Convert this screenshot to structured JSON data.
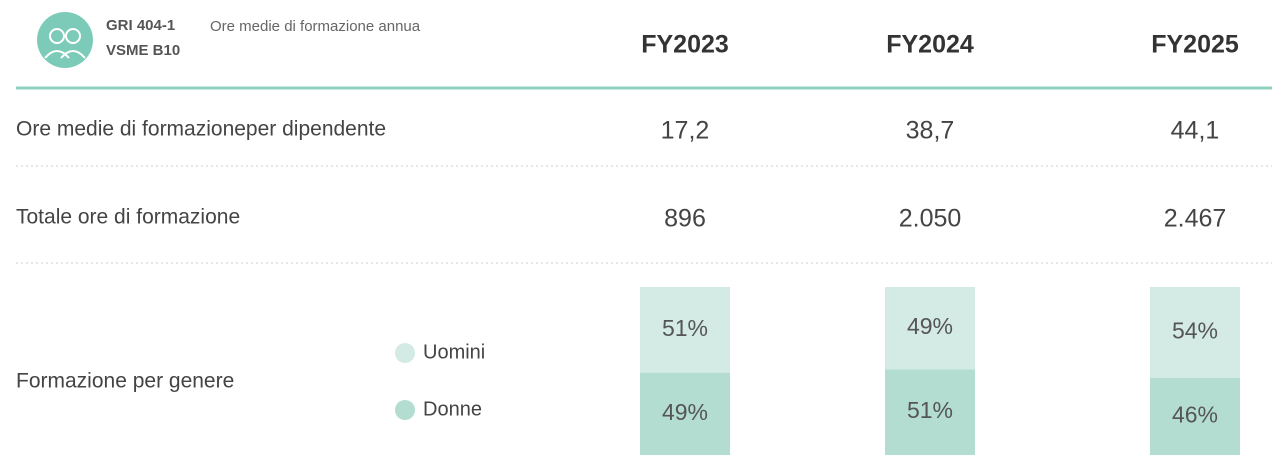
{
  "header": {
    "codes": [
      "GRI 404-1",
      "VSME B10"
    ],
    "title": "Ore medie di formazione annua",
    "columns": [
      "FY2023",
      "FY2024",
      "FY2025"
    ]
  },
  "table": {
    "rows": [
      {
        "label": "Ore medie di formazioneper dipendente",
        "values": [
          "17,2",
          "38,7",
          "44,1"
        ]
      },
      {
        "label": "Totale ore di formazione",
        "values": [
          "896",
          "2.050",
          "2.467"
        ]
      }
    ]
  },
  "gender": {
    "label": "Formazione per genere",
    "series": [
      {
        "name": "Uomini",
        "color": "#d4ebe5",
        "values": [
          51,
          49,
          54
        ],
        "value_labels": [
          "51%",
          "49%",
          "54%"
        ]
      },
      {
        "name": "Donne",
        "color": "#b4ddd2",
        "values": [
          49,
          51,
          46
        ],
        "value_labels": [
          "49%",
          "51%",
          "46%"
        ]
      }
    ]
  }
}
